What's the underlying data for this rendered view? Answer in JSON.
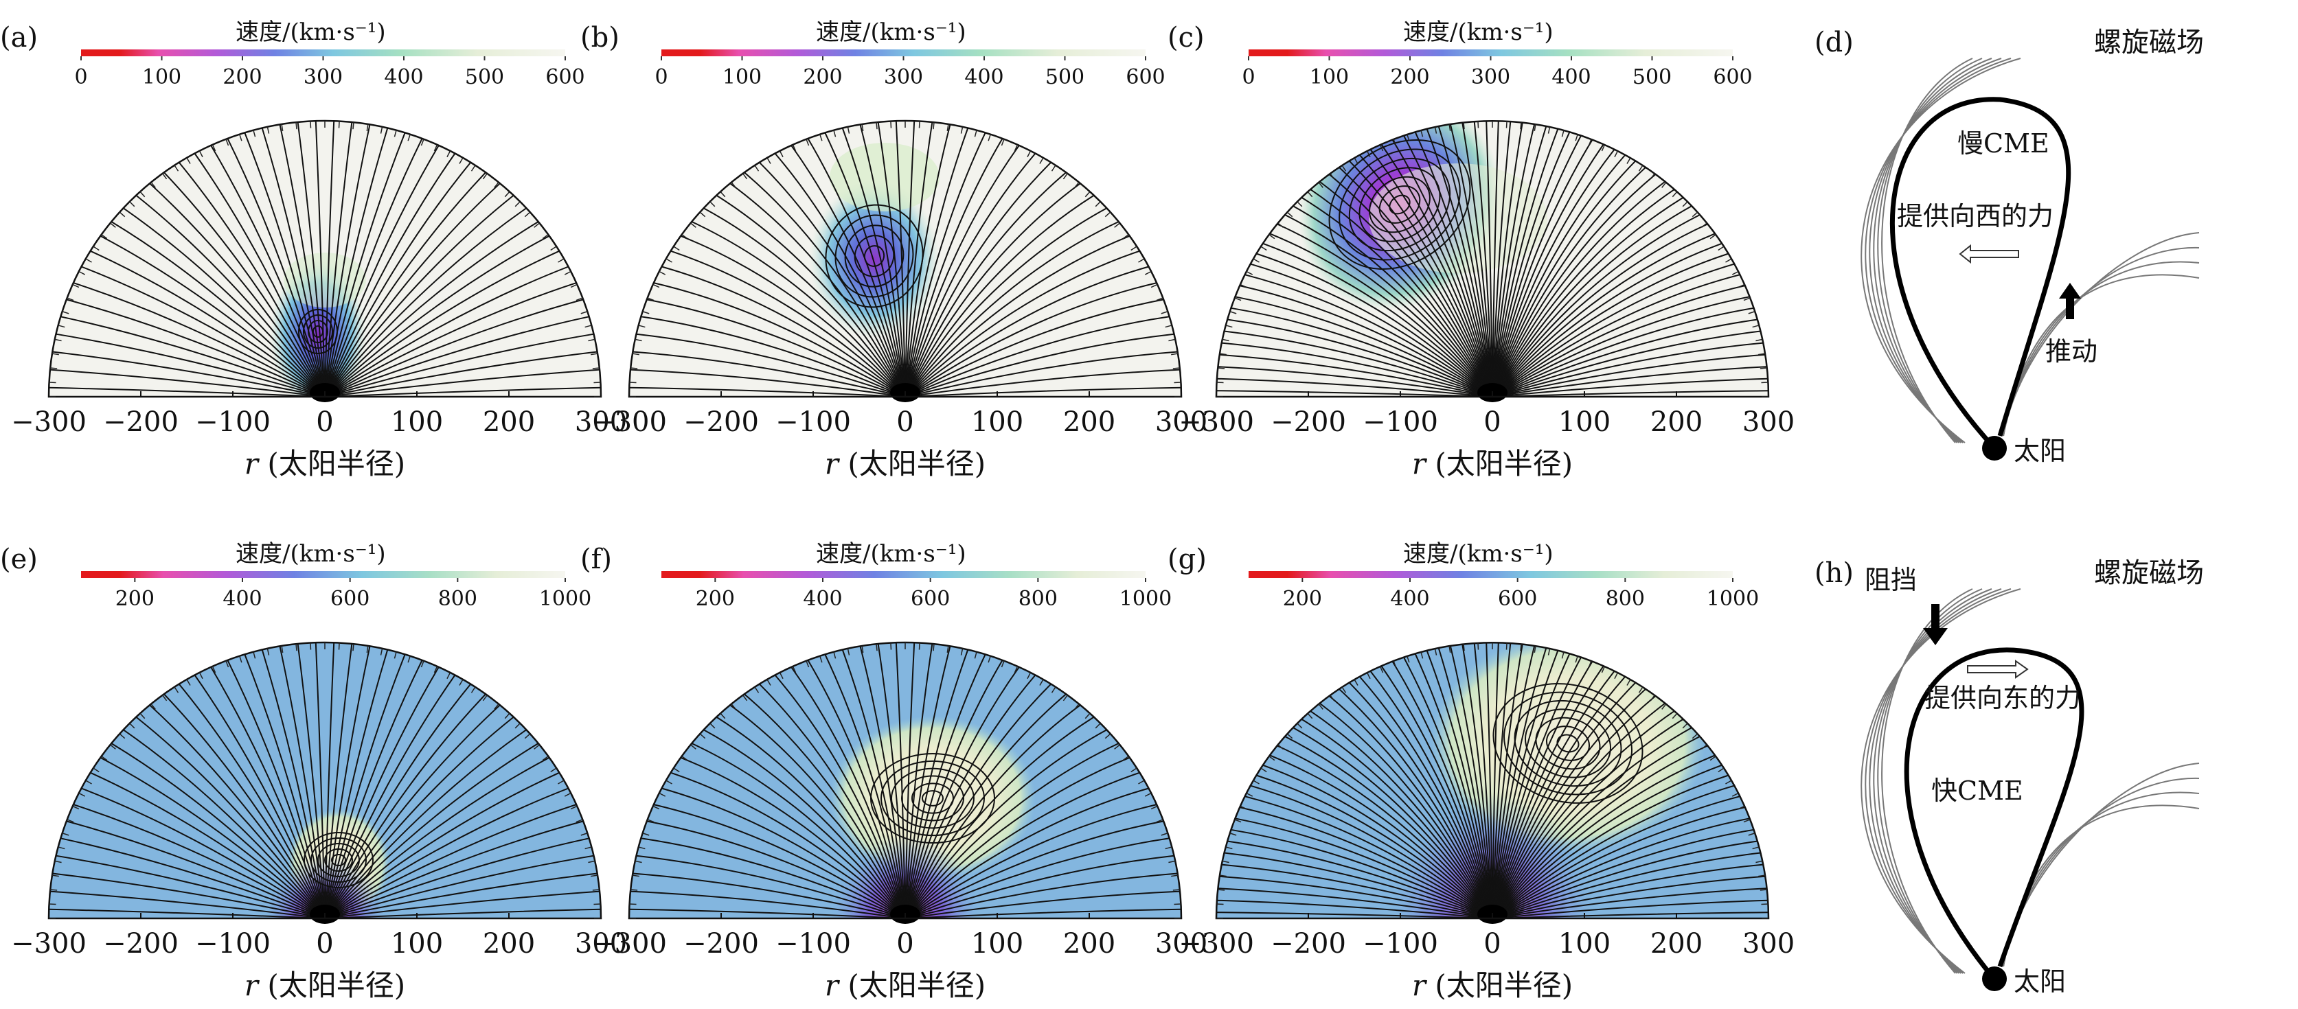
{
  "figure": {
    "colorbar_title": "速度/(km·s⁻¹)",
    "colorbar_top": {
      "ticks": [
        "0",
        "100",
        "200",
        "300",
        "400",
        "500",
        "600"
      ],
      "range": [
        0,
        600
      ]
    },
    "colorbar_bottom": {
      "ticks": [
        "200",
        "400",
        "600",
        "800",
        "1000"
      ],
      "range": [
        100,
        1000
      ]
    },
    "colorbar_colors": [
      "#e11b1b",
      "#ea3aa6",
      "#c45ad6",
      "#7f7de3",
      "#74bde0",
      "#86d8c0",
      "#b9e3c4",
      "#e7eed8",
      "#f4f4ee"
    ],
    "axis_ticks": [
      "−300",
      "−200",
      "−100",
      "0",
      "100",
      "200",
      "300"
    ],
    "axis_label_r": "r",
    "axis_label_unit": "(太阳半径)",
    "panels": [
      {
        "label": "(a)"
      },
      {
        "label": "(b)"
      },
      {
        "label": "(c)"
      },
      {
        "label": "(e)"
      },
      {
        "label": "(f)"
      },
      {
        "label": "(g)"
      }
    ],
    "schematic_d": {
      "label": "(d)",
      "field_label": "螺旋磁场",
      "cme_label": "慢CME",
      "force_label": "提供向西的力",
      "push_label": "推动",
      "sun_label": "太阳"
    },
    "schematic_h": {
      "label": "(h)",
      "field_label": "螺旋磁场",
      "block_label": "阻挡",
      "force_label": "提供向东的力",
      "cme_label": "快CME",
      "sun_label": "太阳"
    }
  }
}
